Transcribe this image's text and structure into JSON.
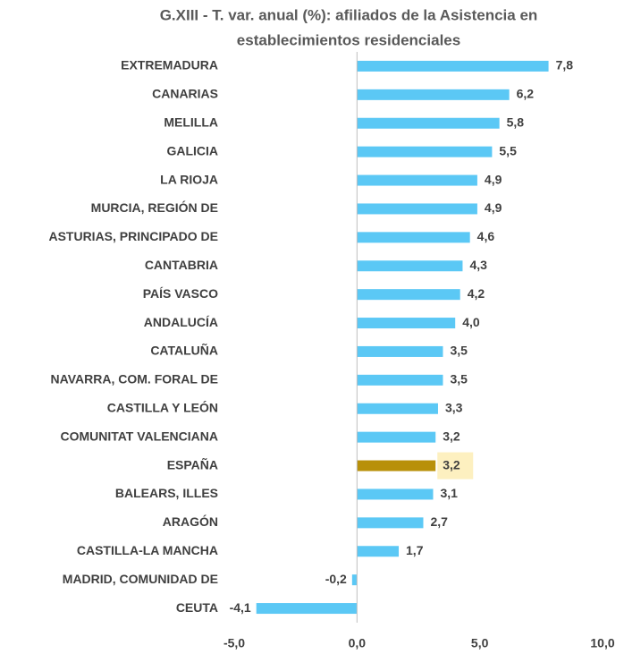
{
  "chart_data": {
    "type": "barh",
    "title": [
      "G.XIII - T. var. anual (%): afiliados de la Asistencia en",
      "establecimientos residenciales"
    ],
    "categories": [
      "EXTREMADURA",
      "CANARIAS",
      "MELILLA",
      "GALICIA",
      "LA RIOJA",
      "MURCIA, REGIÓN DE",
      "ASTURIAS, PRINCIPADO DE",
      "CANTABRIA",
      "PAÍS VASCO",
      "ANDALUCÍA",
      "CATALUÑA",
      "NAVARRA, COM. FORAL DE",
      "CASTILLA Y LEÓN",
      "COMUNITAT VALENCIANA",
      "ESPAÑA",
      "BALEARS, ILLES",
      "ARAGÓN",
      "CASTILLA-LA MANCHA",
      "MADRID, COMUNIDAD DE",
      "CEUTA"
    ],
    "values": [
      7.8,
      6.2,
      5.8,
      5.5,
      4.9,
      4.9,
      4.6,
      4.3,
      4.2,
      4.0,
      3.5,
      3.5,
      3.3,
      3.2,
      3.2,
      3.1,
      2.7,
      1.7,
      -0.2,
      -4.1
    ],
    "value_labels": [
      "7,8",
      "6,2",
      "5,8",
      "5,5",
      "4,9",
      "4,9",
      "4,6",
      "4,3",
      "4,2",
      "4,0",
      "3,5",
      "3,5",
      "3,3",
      "3,2",
      "3,2",
      "3,1",
      "2,7",
      "1,7",
      "-0,2",
      "-4,1"
    ],
    "color": "#5bc8f5",
    "highlight": {
      "index": 14,
      "color": "#b8900a",
      "label_background": "#fdf0c0"
    },
    "xlim": [
      -5,
      10
    ],
    "xticks": [
      {
        "value": -5,
        "label": "-5,0"
      },
      {
        "value": 0,
        "label": "0,0"
      },
      {
        "value": 5,
        "label": "5,0"
      },
      {
        "value": 10,
        "label": "10,0"
      }
    ],
    "grid": false
  }
}
